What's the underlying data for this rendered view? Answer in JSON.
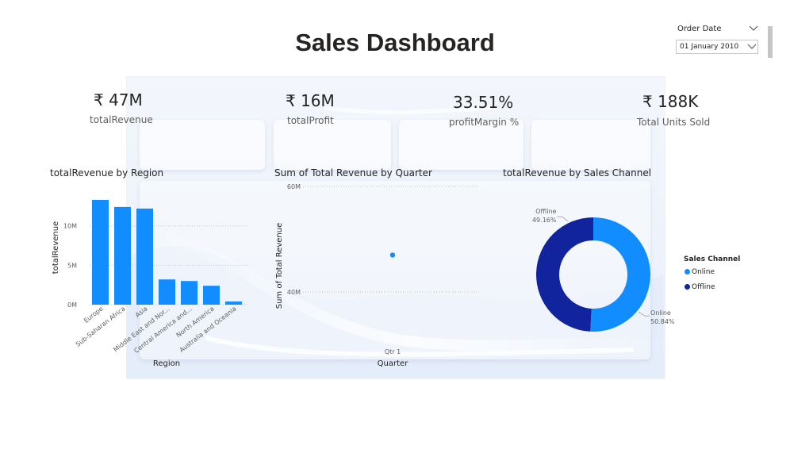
{
  "page": {
    "title": "Sales Dashboard"
  },
  "slicer": {
    "label": "Order Date",
    "value": "01 January 2010"
  },
  "kpis": [
    {
      "value": "₹ 47M",
      "label": "totalRevenue"
    },
    {
      "value": "₹ 16M",
      "label": "totalProfit"
    },
    {
      "value": "33.51%",
      "label": "profitMargin %"
    },
    {
      "value": "₹ 188K",
      "label": "Total Units Sold"
    }
  ],
  "colors": {
    "online": "#118dff",
    "offline": "#12239e",
    "bar": "#118dff"
  },
  "chart_data": [
    {
      "type": "bar",
      "title": "totalRevenue by Region",
      "xlabel": "Region",
      "ylabel": "totalRevenue",
      "categories": [
        "Europe",
        "Sub-Saharan Africa",
        "Asia",
        "Middle East and Nor...",
        "Central America and...",
        "North America",
        "Australia and Oceania"
      ],
      "values": [
        13.3,
        12.4,
        12.2,
        3.2,
        3.0,
        2.4,
        0.4
      ],
      "yticks": [
        "0M",
        "5M",
        "10M"
      ],
      "ylim": [
        0,
        14.5
      ],
      "grid": true
    },
    {
      "type": "scatter",
      "title": "Sum of Total Revenue by Quarter",
      "xlabel": "Quarter",
      "ylabel": "Sum of Total Revenue",
      "categories": [
        "Qtr 1"
      ],
      "values": [
        47
      ],
      "yticks": [
        "40M",
        "60M"
      ],
      "ylim": [
        40,
        60
      ],
      "grid": true
    },
    {
      "type": "pie",
      "title": "totalRevenue by Sales Channel",
      "legend_title": "Sales Channel",
      "legend_position": "right",
      "slices": [
        {
          "label": "Online",
          "value": 50.84,
          "pct_label": "50.84%"
        },
        {
          "label": "Offline",
          "value": 49.16,
          "pct_label": "49.16%"
        }
      ]
    }
  ]
}
